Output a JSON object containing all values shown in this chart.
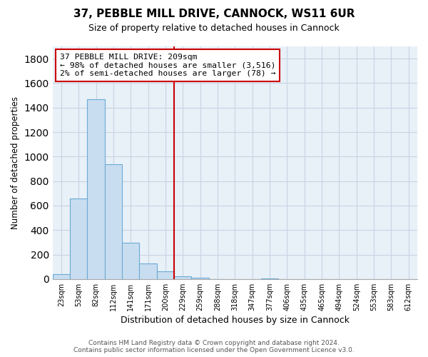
{
  "title": "37, PEBBLE MILL DRIVE, CANNOCK, WS11 6UR",
  "subtitle": "Size of property relative to detached houses in Cannock",
  "xlabel": "Distribution of detached houses by size in Cannock",
  "ylabel": "Number of detached properties",
  "bar_labels": [
    "23sqm",
    "53sqm",
    "82sqm",
    "112sqm",
    "141sqm",
    "171sqm",
    "200sqm",
    "229sqm",
    "259sqm",
    "288sqm",
    "318sqm",
    "347sqm",
    "377sqm",
    "406sqm",
    "435sqm",
    "465sqm",
    "494sqm",
    "524sqm",
    "553sqm",
    "583sqm",
    "612sqm"
  ],
  "bar_values": [
    40,
    655,
    1470,
    935,
    295,
    130,
    65,
    25,
    10,
    0,
    0,
    0,
    5,
    0,
    0,
    0,
    0,
    0,
    0,
    0,
    0
  ],
  "bar_color": "#c9ddf0",
  "bar_edge_color": "#6aaad4",
  "vline_color": "#cc0000",
  "ylim": [
    0,
    1900
  ],
  "yticks": [
    0,
    200,
    400,
    600,
    800,
    1000,
    1200,
    1400,
    1600,
    1800
  ],
  "annotation_title": "37 PEBBLE MILL DRIVE: 209sqm",
  "annotation_line1": "← 98% of detached houses are smaller (3,516)",
  "annotation_line2": "2% of semi-detached houses are larger (78) →",
  "annotation_box_color": "#ffffff",
  "annotation_box_edge": "#cc0000",
  "footer_line1": "Contains HM Land Registry data © Crown copyright and database right 2024.",
  "footer_line2": "Contains public sector information licensed under the Open Government Licence v3.0.",
  "background_color": "#ffffff",
  "plot_bg_color": "#e8f0f8",
  "grid_color": "#c8d4e4"
}
